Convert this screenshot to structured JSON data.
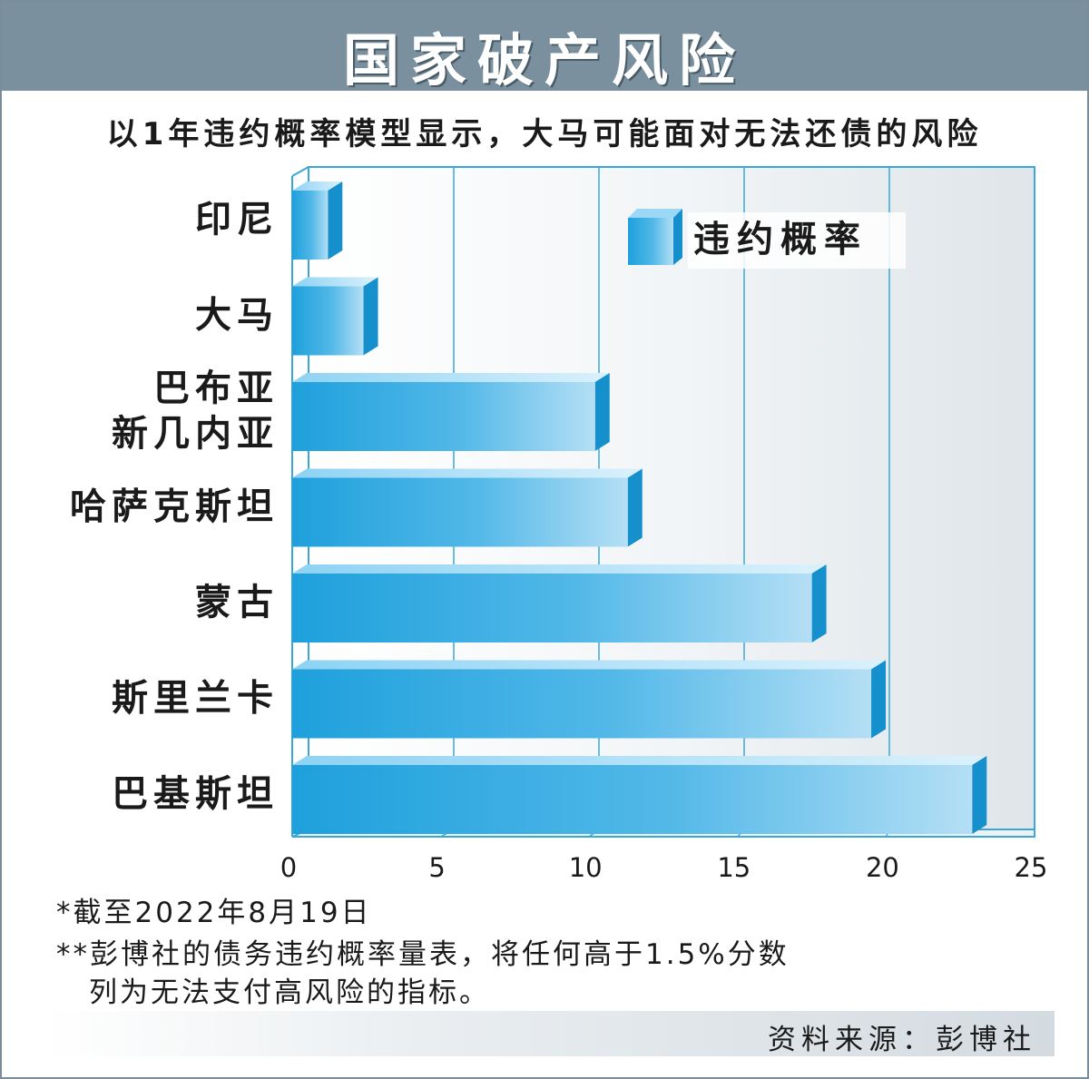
{
  "title": "国家破产风险",
  "subtitle": "以1年违约概率模型显示，大马可能面对无法还债的风险",
  "chart_data": {
    "type": "bar",
    "orientation": "horizontal",
    "categories": [
      "印尼",
      "大马",
      "巴布亚新几内亚",
      "哈萨克斯坦",
      "蒙古",
      "斯里兰卡",
      "巴基斯坦"
    ],
    "category_lines": [
      [
        "印尼"
      ],
      [
        "大马"
      ],
      [
        "巴布亚",
        "新几内亚"
      ],
      [
        "哈萨克斯坦"
      ],
      [
        "蒙古"
      ],
      [
        "斯里兰卡"
      ],
      [
        "巴基斯坦"
      ]
    ],
    "series": [
      {
        "name": "违约概率",
        "values": [
          1.2,
          2.4,
          10.2,
          11.3,
          17.5,
          19.5,
          22.9
        ]
      }
    ],
    "xlim": [
      0,
      25
    ],
    "xticks": [
      0,
      5,
      10,
      15,
      20,
      25
    ],
    "grid": true,
    "legend": "top-right",
    "bar_color": "#29a8e0"
  },
  "notes": {
    "note1": "*截至2022年8月19日",
    "note2_line1": "**彭博社的债务违约概率量表，将任何高于1.5%分数",
    "note2_line2": "列为无法支付高风险的指标。"
  },
  "source": "资料来源：彭博社"
}
